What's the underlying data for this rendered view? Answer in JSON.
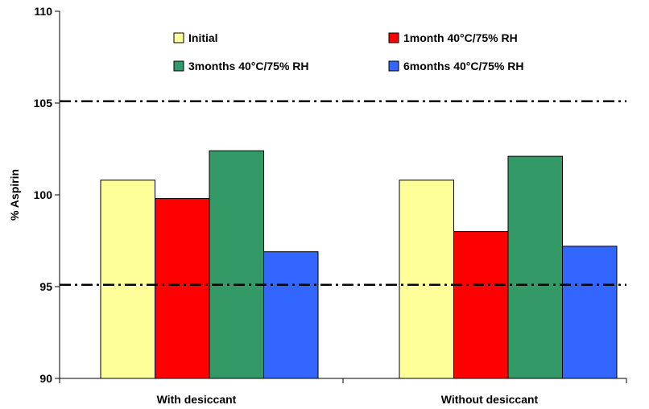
{
  "chart_data": {
    "type": "bar",
    "title": "",
    "xlabel": "",
    "ylabel": "% Aspirin",
    "ylim": [
      90,
      110
    ],
    "yticks": [
      90,
      95,
      100,
      105,
      110
    ],
    "categories": [
      "With desiccant",
      "Without desiccant"
    ],
    "series": [
      {
        "name": "Initial",
        "color": "#FFFF99",
        "values": [
          100.8,
          100.8
        ]
      },
      {
        "name": "1month 40°C/75% RH",
        "color": "#FF0000",
        "values": [
          99.8,
          98.0
        ]
      },
      {
        "name": "3months 40°C/75% RH",
        "color": "#339966",
        "values": [
          102.4,
          102.1
        ]
      },
      {
        "name": "6months 40°C/75% RH",
        "color": "#3366FF",
        "values": [
          96.9,
          97.2
        ]
      }
    ],
    "reference_lines": [
      105.1,
      95.1
    ],
    "grid": false,
    "legend_position": "top"
  }
}
